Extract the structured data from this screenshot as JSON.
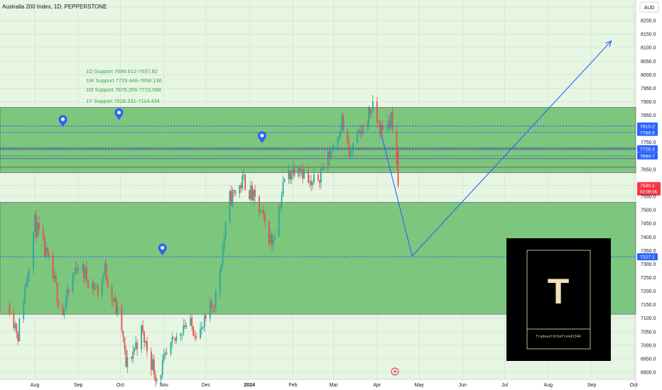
{
  "header": {
    "symbol_title": "Australia 200 Index, 1D, PEPPERSTONE"
  },
  "currency": "AUD",
  "support_notes": [
    "1D Support 7689.612-7637.82",
    "1W Support 7729.448-7658.136",
    "1M Support 7879.256-7723.588",
    "1Y Support 7528.231-7114.434"
  ],
  "logo": {
    "letter": "T",
    "caption": "TradewiththeTrend1344"
  },
  "colors": {
    "background": "#e6f6e3",
    "zone_fill": "#7cc67d",
    "up_candle": "#2ca79b",
    "down_candle": "#e8504c",
    "projection": "#2962ff",
    "price_badge": "#f23645",
    "level_badge": "#2962ff"
  },
  "chart_data": {
    "type": "candlestick",
    "x_tick_labels": [
      "Aug",
      "Sep",
      "Oct",
      "Nov",
      "Dec",
      "2024",
      "Feb",
      "Mar",
      "Apr",
      "May",
      "Jun",
      "Jul",
      "Aug",
      "Sep",
      "Oct"
    ],
    "y_tick_labels": [
      "8250.0",
      "8200.0",
      "8150.0",
      "8100.0",
      "8050.0",
      "8000.0",
      "7950.0",
      "7900.0",
      "7850.0",
      "7750.0",
      "7650.0",
      "7550.0",
      "7500.0",
      "7450.0",
      "7400.0",
      "7350.0",
      "7300.0",
      "7250.0",
      "7200.0",
      "7150.0",
      "7100.0",
      "7050.0",
      "7000.0",
      "6950.0",
      "6900.0"
    ],
    "y_range": [
      6890,
      8275
    ],
    "zones": [
      {
        "low": 7637.82,
        "high": 7879.256
      },
      {
        "low": 7114.434,
        "high": 7528.231
      }
    ],
    "levels": [
      {
        "value": 7810.2,
        "label": "7810.2"
      },
      {
        "value": 7786.9,
        "label": "7786.9"
      },
      {
        "value": 7726.3,
        "label": "7726.3"
      },
      {
        "value": 7699.7,
        "label": "7699.7"
      },
      {
        "value": 7327.1,
        "label": "7327.1"
      }
    ],
    "last_price": {
      "value": 7590.1,
      "label": "7590.1",
      "countdown": "02:09:06"
    },
    "projection": [
      {
        "date": "2024-04-04",
        "value": 7780
      },
      {
        "date": "2024-04-26",
        "value": 7330
      },
      {
        "date": "2024-09-15",
        "value": 8125
      }
    ],
    "markers": [
      {
        "date": "2023-08-21",
        "value": 7830
      },
      {
        "date": "2023-09-30",
        "value": 7855
      },
      {
        "date": "2024-01-10",
        "value": 7770
      },
      {
        "date": "2023-10-31",
        "value": 7355
      }
    ],
    "candles": {
      "start_date": "2023-07-14",
      "end_date": "2024-04-16",
      "key_closes": [
        {
          "date": "2023-07-14",
          "value": 7150
        },
        {
          "date": "2023-07-20",
          "value": 7040
        },
        {
          "date": "2023-08-01",
          "value": 7450
        },
        {
          "date": "2023-08-11",
          "value": 7300
        },
        {
          "date": "2023-08-21",
          "value": 7120
        },
        {
          "date": "2023-08-31",
          "value": 7300
        },
        {
          "date": "2023-09-15",
          "value": 7200
        },
        {
          "date": "2023-09-20",
          "value": 7280
        },
        {
          "date": "2023-10-02",
          "value": 7060
        },
        {
          "date": "2023-10-05",
          "value": 6920
        },
        {
          "date": "2023-10-16",
          "value": 7050
        },
        {
          "date": "2023-10-27",
          "value": 6880
        },
        {
          "date": "2023-11-15",
          "value": 7080
        },
        {
          "date": "2023-11-28",
          "value": 7050
        },
        {
          "date": "2023-12-08",
          "value": 7180
        },
        {
          "date": "2023-12-18",
          "value": 7540
        },
        {
          "date": "2023-12-28",
          "value": 7610
        },
        {
          "date": "2024-01-08",
          "value": 7500
        },
        {
          "date": "2024-01-17",
          "value": 7380
        },
        {
          "date": "2024-01-26",
          "value": 7610
        },
        {
          "date": "2024-02-05",
          "value": 7680
        },
        {
          "date": "2024-02-14",
          "value": 7580
        },
        {
          "date": "2024-02-26",
          "value": 7690
        },
        {
          "date": "2024-03-07",
          "value": 7830
        },
        {
          "date": "2024-03-12",
          "value": 7700
        },
        {
          "date": "2024-03-22",
          "value": 7800
        },
        {
          "date": "2024-03-28",
          "value": 7880
        },
        {
          "date": "2024-04-05",
          "value": 7780
        },
        {
          "date": "2024-04-11",
          "value": 7850
        },
        {
          "date": "2024-04-16",
          "value": 7590
        }
      ]
    }
  }
}
